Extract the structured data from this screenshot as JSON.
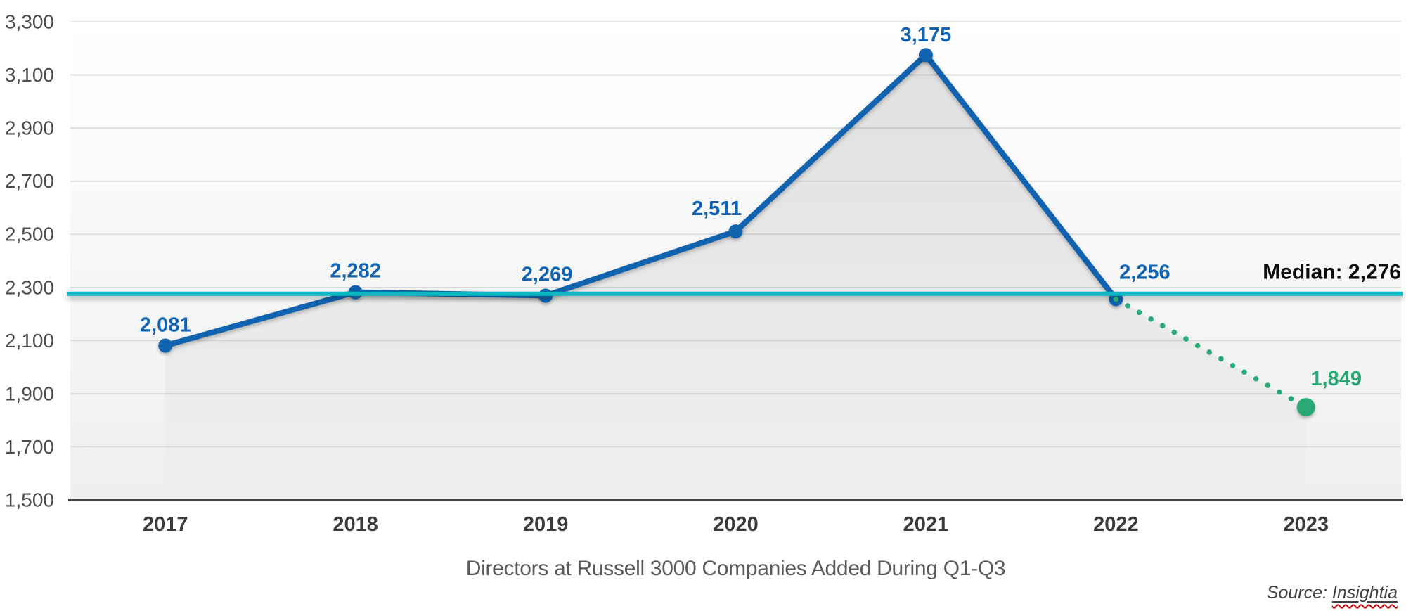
{
  "chart_data": {
    "type": "line",
    "title": "Directors at Russell 3000 Companies Added During Q1-Q3",
    "categories": [
      "2017",
      "2018",
      "2019",
      "2020",
      "2021",
      "2022",
      "2023"
    ],
    "series": [
      {
        "name": "directors-added-actual",
        "style": "solid",
        "color": "#1263af",
        "x": [
          "2017",
          "2018",
          "2019",
          "2020",
          "2021",
          "2022"
        ],
        "values": [
          2081,
          2282,
          2269,
          2511,
          3175,
          2256
        ]
      },
      {
        "name": "directors-added-projection",
        "style": "dotted",
        "color": "#2aa876",
        "x": [
          "2022",
          "2023"
        ],
        "values": [
          2256,
          1849
        ]
      }
    ],
    "point_labels": [
      "2,081",
      "2,282",
      "2,269",
      "2,511",
      "3,175",
      "2,256",
      "1,849"
    ],
    "median": {
      "value": 2276,
      "label": "Median: 2,276",
      "color": "#0cb8c1"
    },
    "ylim": [
      1500,
      3300
    ],
    "ytick_step": 200,
    "ytick_labels": [
      "1,500",
      "1,700",
      "1,900",
      "2,100",
      "2,300",
      "2,500",
      "2,700",
      "2,900",
      "3,100",
      "3,300"
    ],
    "grid": "horizontal",
    "legend": "none",
    "colors": {
      "grid": "#d9d9d9",
      "axis": "#404040",
      "tick_text": "#4d4d4d",
      "xtick_text": "#3b3b3b",
      "median_text": "#0d0d0d"
    }
  },
  "source": {
    "prefix": "Source: ",
    "name": "Insightia"
  }
}
